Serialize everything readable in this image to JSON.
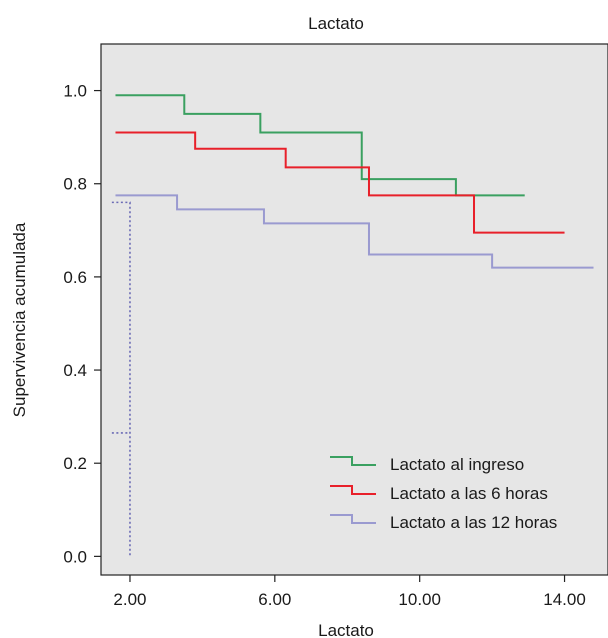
{
  "chart_data": {
    "type": "line",
    "step": true,
    "title": "Lactato",
    "xlabel": "Lactato",
    "ylabel": "Supervivencia acumulada",
    "xlim": [
      1.2,
      15.2
    ],
    "ylim": [
      -0.04,
      1.1
    ],
    "xticks": [
      2,
      6,
      10,
      14
    ],
    "xtick_labels": [
      "2.00",
      "6.00",
      "10.00",
      "14.00"
    ],
    "yticks": [
      0,
      0.2,
      0.4,
      0.6,
      0.8,
      1.0
    ],
    "ytick_labels": [
      "0.0",
      "0.2",
      "0.4",
      "0.6",
      "0.8",
      "1.0"
    ],
    "grid": false,
    "legend_position": "bottom-right",
    "background_color": "#e6e6e6",
    "series": [
      {
        "name": "Lactato al ingreso",
        "color": "#3aa060",
        "x": [
          1.6,
          3.5,
          5.6,
          8.4,
          11.0,
          12.9
        ],
        "y": [
          0.99,
          0.95,
          0.91,
          0.81,
          0.775,
          0.775
        ]
      },
      {
        "name": "Lactato a las 6 horas",
        "color": "#e8202a",
        "x": [
          1.6,
          3.8,
          6.3,
          8.6,
          11.5,
          14.0
        ],
        "y": [
          0.91,
          0.875,
          0.835,
          0.775,
          0.695,
          0.695
        ]
      },
      {
        "name": "Lactato a las 12 horas",
        "color": "#9a9ad0",
        "x": [
          1.6,
          3.3,
          5.7,
          8.6,
          12.0,
          14.8
        ],
        "y": [
          0.775,
          0.745,
          0.715,
          0.648,
          0.62,
          0.62
        ]
      }
    ],
    "reference_lines": [
      {
        "style": "dotted",
        "color": "#6b6bb5",
        "x": [
          1.5,
          2.0,
          2.0
        ],
        "y": [
          0.76,
          0.76,
          0.0
        ]
      },
      {
        "style": "dotted",
        "color": "#6b6bb5",
        "x": [
          1.5,
          2.0
        ],
        "y": [
          0.265,
          0.265
        ]
      }
    ]
  }
}
